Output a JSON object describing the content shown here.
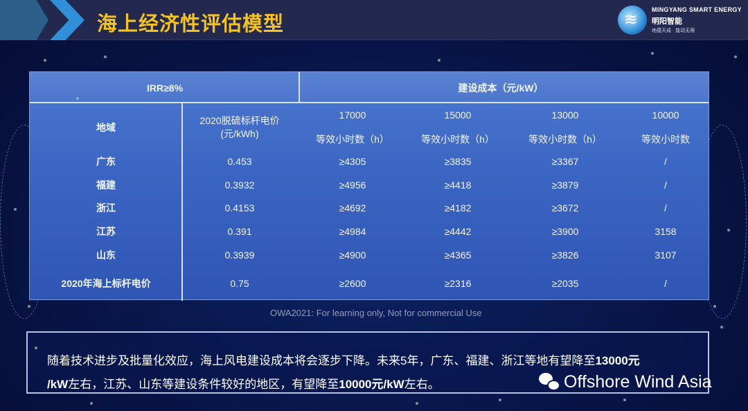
{
  "header": {
    "title": "海上经济性评估模型",
    "logo": {
      "en": "MINGYANG SMART ENERGY",
      "cn": "明阳智能",
      "slogan": "地蕴天成 · 能动无限"
    }
  },
  "table": {
    "irr_label": "IRR≥8%",
    "cost_label": "建设成本（元/kW）",
    "region_header": "地域",
    "price_header": "2020脱硫标杆电价",
    "price_unit": "(元/kWh)",
    "cost_levels": [
      {
        "cost": "17000",
        "hours_label": "等效小时数（h）"
      },
      {
        "cost": "15000",
        "hours_label": "等效小时数（h）"
      },
      {
        "cost": "13000",
        "hours_label": "等效小时数（h）"
      },
      {
        "cost": "10000",
        "hours_label": "等效小时数"
      }
    ],
    "rows": [
      {
        "region": "广东",
        "price": "0.453",
        "h17000": "≥4305",
        "h15000": "≥3835",
        "h13000": "≥3367",
        "h10000": "/"
      },
      {
        "region": "福建",
        "price": "0.3932",
        "h17000": "≥4956",
        "h15000": "≥4418",
        "h13000": "≥3879",
        "h10000": "/"
      },
      {
        "region": "浙江",
        "price": "0.4153",
        "h17000": "≥4692",
        "h15000": "≥4182",
        "h13000": "≥3672",
        "h10000": "/"
      },
      {
        "region": "江苏",
        "price": "0.391",
        "h17000": "≥4984",
        "h15000": "≥4442",
        "h13000": "≥3900",
        "h10000": "3158"
      },
      {
        "region": "山东",
        "price": "0.3939",
        "h17000": "≥4900",
        "h15000": "≥4365",
        "h13000": "≥3826",
        "h10000": "3107"
      },
      {
        "region": "2020年海上标杆电价",
        "price": "0.75",
        "h17000": "≥2600",
        "h15000": "≥2316",
        "h13000": "≥2035",
        "h10000": "/"
      }
    ]
  },
  "watermark": "OWA2021: For learning only, Not for commercial Use",
  "note": {
    "line1_a": "随着技术进步及批量化效应，海上风电建设成本将会逐步下降。未来5年，广东、福建、浙江等地有望降至",
    "line1_b": "13000元",
    "line2_a": "/kW",
    "line2_b": "左右，江苏、山东等建设条件较好的地区，有望降至",
    "line2_c": "10000元/kW",
    "line2_d": "左右。"
  },
  "brand": {
    "icon": "wechat-icon",
    "text": "Offshore Wind Asia"
  },
  "colors": {
    "title": "#f6c21c",
    "table": "#3d67c4",
    "background": "#081548"
  }
}
